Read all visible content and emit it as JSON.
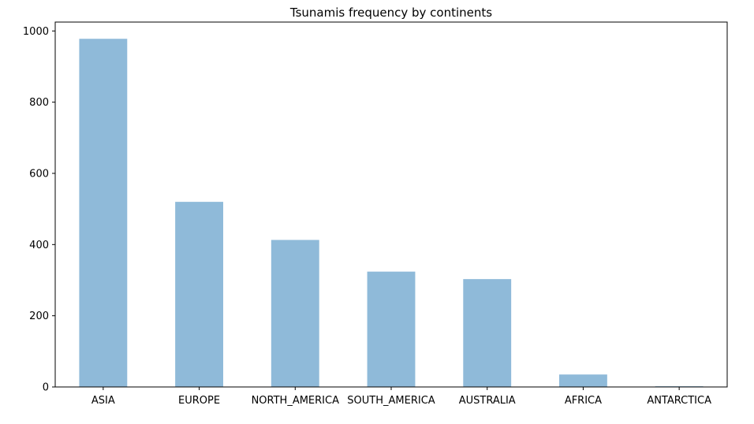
{
  "chart_data": {
    "type": "bar",
    "title": "Tsunamis frequency by continents",
    "xlabel": "",
    "ylabel": "",
    "categories": [
      "ASIA",
      "EUROPE",
      "NORTH_AMERICA",
      "SOUTH_AMERICA",
      "AUSTRALIA",
      "AFRICA",
      "ANTARCTICA"
    ],
    "values": [
      978,
      520,
      413,
      324,
      303,
      35,
      2
    ],
    "ylim": [
      0,
      1025
    ],
    "yticks": [
      0,
      200,
      400,
      600,
      800,
      1000
    ],
    "bar_color": "#8fbad9",
    "grid": false,
    "legend": "none"
  }
}
